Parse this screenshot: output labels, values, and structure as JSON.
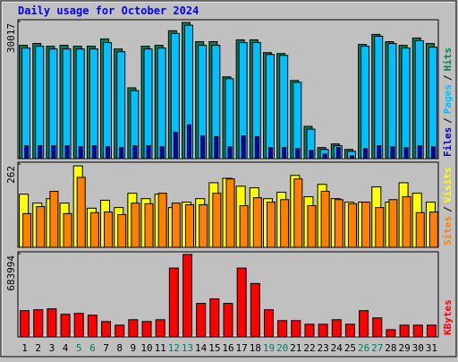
{
  "chart_data": [
    {
      "type": "bar",
      "title": "Daily usage for October 2024",
      "ylim": [
        0,
        30017
      ],
      "yticks": [
        30017
      ],
      "legend_separator": "/",
      "series": [
        {
          "name": "Hits",
          "color": "#00805c",
          "values": [
            24800,
            25200,
            24600,
            24800,
            24600,
            24600,
            26200,
            24000,
            15500,
            24600,
            24800,
            28000,
            29800,
            25600,
            25600,
            17900,
            26000,
            26000,
            23200,
            23000,
            17100,
            7050,
            2420,
            3220,
            2010,
            25000,
            27200,
            25600,
            24800,
            26400,
            25200
          ]
        },
        {
          "name": "Pages",
          "color": "#00c0ff",
          "values": [
            24200,
            24600,
            24000,
            24000,
            24000,
            24000,
            25400,
            23400,
            14900,
            24000,
            24200,
            27400,
            29200,
            24800,
            24800,
            17500,
            25400,
            25400,
            22800,
            22600,
            16700,
            6450,
            2010,
            2820,
            1610,
            24600,
            26800,
            25200,
            24200,
            25800,
            24400
          ]
        },
        {
          "name": "Files",
          "color": "#0000c0",
          "values": [
            2800,
            2800,
            2800,
            2800,
            2600,
            2800,
            2600,
            2400,
            2800,
            2800,
            2600,
            5800,
            7400,
            5000,
            4800,
            2600,
            5000,
            4800,
            2400,
            2400,
            2200,
            1800,
            1000,
            2400,
            600,
            2200,
            2800,
            2600,
            2400,
            2800,
            2600
          ]
        }
      ]
    },
    {
      "type": "bar",
      "ylim": [
        0,
        262
      ],
      "yticks": [
        262
      ],
      "legend_separator": "/",
      "series": [
        {
          "name": "Visits",
          "color": "#ffff00",
          "values": [
            167,
            139,
            153,
            139,
            256,
            123,
            148,
            125,
            170,
            153,
            167,
            125,
            142,
            153,
            203,
            217,
            192,
            187,
            153,
            173,
            226,
            159,
            198,
            153,
            142,
            142,
            190,
            142,
            203,
            170,
            142
          ]
        },
        {
          "name": "Sites",
          "color": "#ff8000",
          "values": [
            106,
            128,
            176,
            106,
            220,
            109,
            111,
            103,
            139,
            137,
            170,
            139,
            134,
            134,
            170,
            215,
            131,
            156,
            142,
            150,
            215,
            131,
            176,
            150,
            137,
            142,
            125,
            150,
            159,
            109,
            111
          ]
        }
      ]
    },
    {
      "type": "bar",
      "ylim": [
        0,
        683994
      ],
      "yticks": [
        683994
      ],
      "categories": [
        "1",
        "2",
        "3",
        "4",
        "5",
        "6",
        "7",
        "8",
        "9",
        "10",
        "11",
        "12",
        "13",
        "14",
        "15",
        "16",
        "17",
        "18",
        "19",
        "20",
        "21",
        "22",
        "23",
        "24",
        "25",
        "26",
        "27",
        "28",
        "29",
        "30",
        "31"
      ],
      "category_colors": [
        "#000000",
        "#000000",
        "#000000",
        "#000000",
        "#00805c",
        "#00805c",
        "#000000",
        "#000000",
        "#000000",
        "#000000",
        "#000000",
        "#00805c",
        "#00805c",
        "#000000",
        "#000000",
        "#000000",
        "#000000",
        "#000000",
        "#00805c",
        "#00805c",
        "#000000",
        "#000000",
        "#000000",
        "#000000",
        "#000000",
        "#00805c",
        "#00805c",
        "#000000",
        "#000000",
        "#000000",
        "#000000"
      ],
      "series": [
        {
          "name": "KBytes",
          "color": "#ff0000",
          "values": [
            215600,
            223000,
            230500,
            185900,
            193300,
            178400,
            126400,
            96700,
            141300,
            126400,
            141300,
            565100,
            676600,
            275100,
            312300,
            275100,
            565100,
            438700,
            223000,
            133800,
            133800,
            104100,
            104100,
            141300,
            104100,
            215600,
            156100,
            59500,
            96700,
            96700,
            96700
          ]
        }
      ]
    }
  ]
}
